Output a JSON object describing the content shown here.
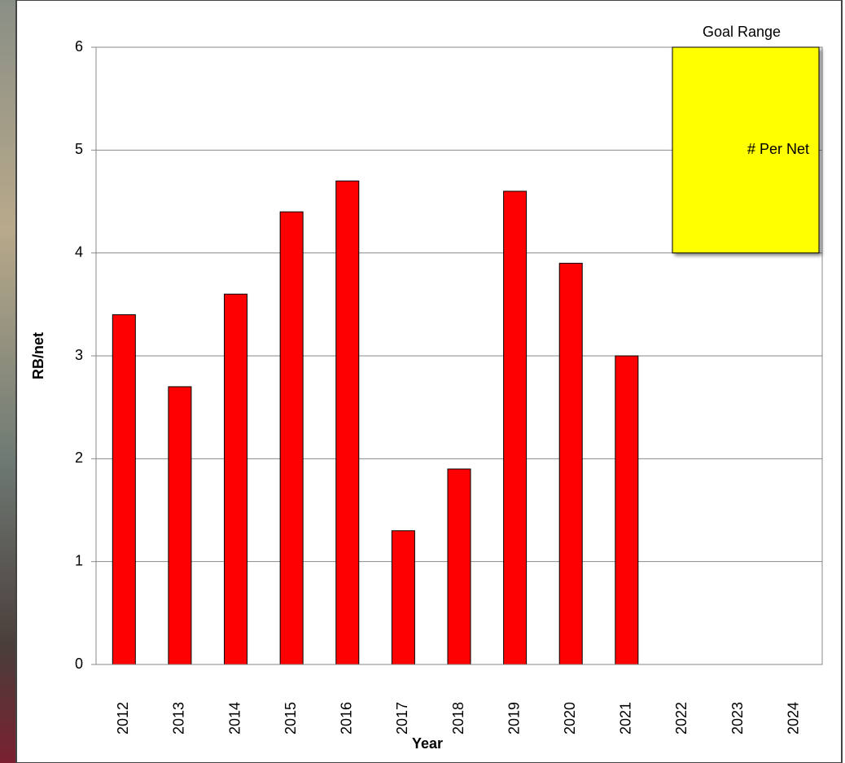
{
  "chart_data": {
    "type": "bar",
    "x_label": "Year",
    "y_label": "RB/net",
    "categories": [
      "2012",
      "2013",
      "2014",
      "2015",
      "2016",
      "2017",
      "2018",
      "2019",
      "2020",
      "2021",
      "2022",
      "2023",
      "2024"
    ],
    "values": [
      3.4,
      2.7,
      3.6,
      4.4,
      4.7,
      1.3,
      1.9,
      4.6,
      3.9,
      3.0,
      null,
      null,
      null
    ],
    "color": "#ff0000",
    "ylim": [
      0,
      6
    ],
    "yticks": [
      0,
      1,
      2,
      3,
      4,
      5,
      6
    ],
    "grid": true,
    "goal_range": {
      "label": "Goal Range",
      "text": "# Per Net",
      "ymin": 4,
      "ymax": 6,
      "color": "#ffff00"
    }
  }
}
